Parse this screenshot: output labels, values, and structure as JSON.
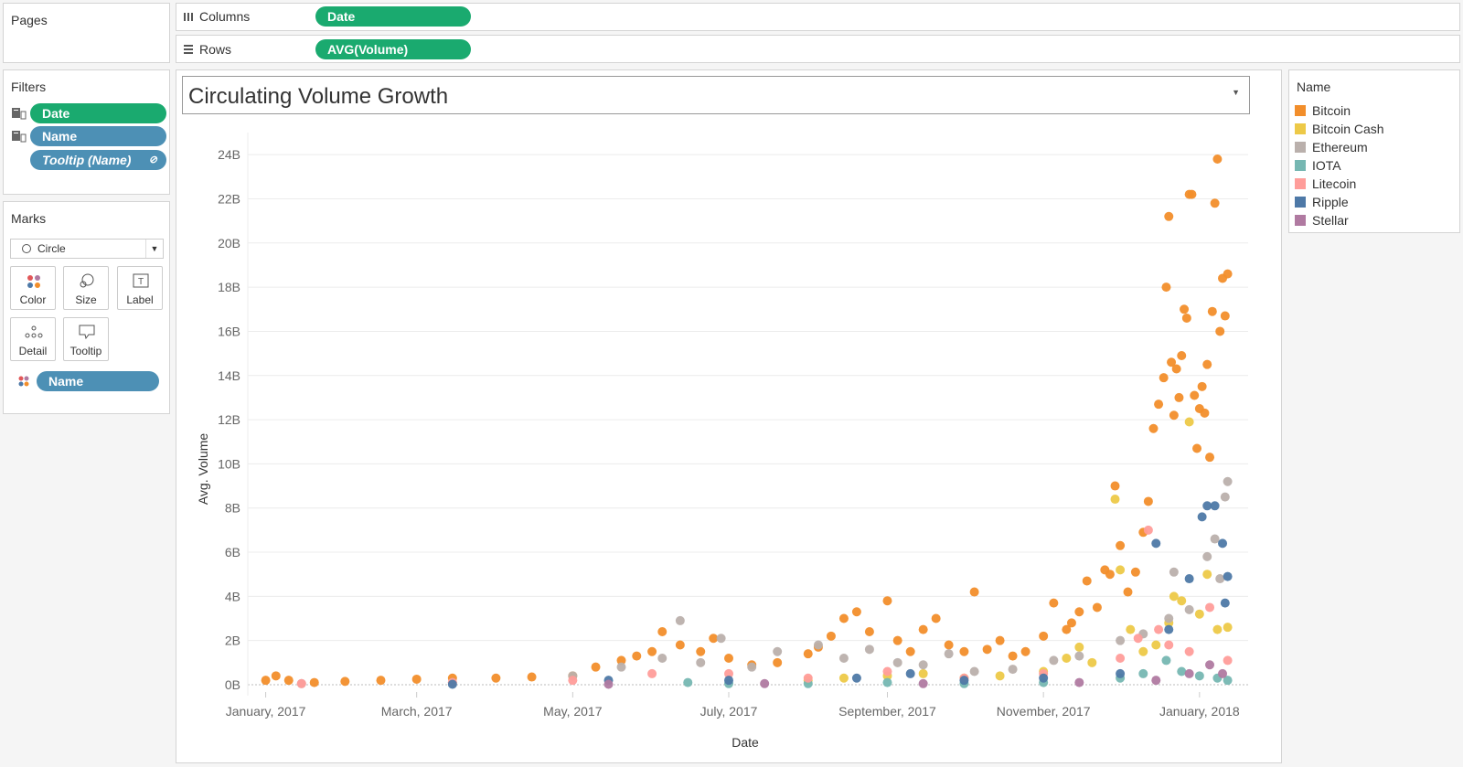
{
  "pages": {
    "title": "Pages"
  },
  "columns_shelf": {
    "label": "Columns",
    "pill": "Date"
  },
  "rows_shelf": {
    "label": "Rows",
    "pill": "AVG(Volume)"
  },
  "filters": {
    "title": "Filters",
    "pills": [
      "Date",
      "Name",
      "Tooltip (Name)"
    ]
  },
  "marks": {
    "title": "Marks",
    "type_select": "Circle",
    "buttons": [
      "Color",
      "Size",
      "Label",
      "Detail",
      "Tooltip"
    ],
    "color_pill": "Name"
  },
  "legend": {
    "title": "Name",
    "items": [
      {
        "name": "Bitcoin",
        "color": "#f28e2b"
      },
      {
        "name": "Bitcoin Cash",
        "color": "#edc948"
      },
      {
        "name": "Ethereum",
        "color": "#bab0ac"
      },
      {
        "name": "IOTA",
        "color": "#76b7b2"
      },
      {
        "name": "Litecoin",
        "color": "#ff9d9a"
      },
      {
        "name": "Ripple",
        "color": "#4e79a7"
      },
      {
        "name": "Stellar",
        "color": "#b07aa1"
      }
    ]
  },
  "chart_data": {
    "type": "scatter",
    "title": "Circulating Volume Growth",
    "xlabel": "Date",
    "ylabel": "Avg. Volume",
    "xlim": [
      "2016-12-25",
      "2018-01-20"
    ],
    "ylim": [
      0,
      25
    ],
    "y_unit": "billions",
    "x_ticks": [
      {
        "date": "2017-01-01",
        "label": "January, 2017"
      },
      {
        "date": "2017-03-01",
        "label": "March, 2017"
      },
      {
        "date": "2017-05-01",
        "label": "May, 2017"
      },
      {
        "date": "2017-07-01",
        "label": "July, 2017"
      },
      {
        "date": "2017-09-01",
        "label": "September, 2017"
      },
      {
        "date": "2017-11-01",
        "label": "November, 2017"
      },
      {
        "date": "2018-01-01",
        "label": "January, 2018"
      }
    ],
    "y_ticks": [
      {
        "value": 0,
        "label": "0B"
      },
      {
        "value": 2,
        "label": "2B"
      },
      {
        "value": 4,
        "label": "4B"
      },
      {
        "value": 6,
        "label": "6B"
      },
      {
        "value": 8,
        "label": "8B"
      },
      {
        "value": 10,
        "label": "10B"
      },
      {
        "value": 12,
        "label": "12B"
      },
      {
        "value": 14,
        "label": "14B"
      },
      {
        "value": 16,
        "label": "16B"
      },
      {
        "value": 18,
        "label": "18B"
      },
      {
        "value": 20,
        "label": "20B"
      },
      {
        "value": 22,
        "label": "22B"
      },
      {
        "value": 24,
        "label": "24B"
      }
    ],
    "grid": true,
    "series": [
      {
        "name": "Bitcoin",
        "color": "#f28e2b",
        "points": [
          [
            "2017-01-01",
            0.2
          ],
          [
            "2017-01-05",
            0.4
          ],
          [
            "2017-01-10",
            0.2
          ],
          [
            "2017-01-20",
            0.1
          ],
          [
            "2017-02-01",
            0.15
          ],
          [
            "2017-02-15",
            0.2
          ],
          [
            "2017-03-01",
            0.25
          ],
          [
            "2017-03-15",
            0.3
          ],
          [
            "2017-04-01",
            0.3
          ],
          [
            "2017-04-15",
            0.35
          ],
          [
            "2017-05-01",
            0.4
          ],
          [
            "2017-05-10",
            0.8
          ],
          [
            "2017-05-20",
            1.1
          ],
          [
            "2017-05-26",
            1.3
          ],
          [
            "2017-06-01",
            1.5
          ],
          [
            "2017-06-05",
            2.4
          ],
          [
            "2017-06-12",
            1.8
          ],
          [
            "2017-06-20",
            1.5
          ],
          [
            "2017-06-25",
            2.1
          ],
          [
            "2017-07-01",
            1.2
          ],
          [
            "2017-07-10",
            0.9
          ],
          [
            "2017-07-20",
            1.0
          ],
          [
            "2017-08-01",
            1.4
          ],
          [
            "2017-08-05",
            1.7
          ],
          [
            "2017-08-10",
            2.2
          ],
          [
            "2017-08-15",
            3.0
          ],
          [
            "2017-08-20",
            3.3
          ],
          [
            "2017-08-25",
            2.4
          ],
          [
            "2017-09-01",
            3.8
          ],
          [
            "2017-09-05",
            2.0
          ],
          [
            "2017-09-10",
            1.5
          ],
          [
            "2017-09-15",
            2.5
          ],
          [
            "2017-09-20",
            3.0
          ],
          [
            "2017-09-25",
            1.8
          ],
          [
            "2017-10-01",
            1.5
          ],
          [
            "2017-10-05",
            4.2
          ],
          [
            "2017-10-10",
            1.6
          ],
          [
            "2017-10-15",
            2.0
          ],
          [
            "2017-10-20",
            1.3
          ],
          [
            "2017-10-25",
            1.5
          ],
          [
            "2017-11-01",
            2.2
          ],
          [
            "2017-11-05",
            3.7
          ],
          [
            "2017-11-10",
            2.5
          ],
          [
            "2017-11-12",
            2.8
          ],
          [
            "2017-11-15",
            3.3
          ],
          [
            "2017-11-18",
            4.7
          ],
          [
            "2017-11-22",
            3.5
          ],
          [
            "2017-11-25",
            5.2
          ],
          [
            "2017-11-27",
            5.0
          ],
          [
            "2017-11-29",
            9.0
          ],
          [
            "2017-12-01",
            6.3
          ],
          [
            "2017-12-04",
            4.2
          ],
          [
            "2017-12-07",
            5.1
          ],
          [
            "2017-12-10",
            6.9
          ],
          [
            "2017-12-12",
            8.3
          ],
          [
            "2017-12-14",
            11.6
          ],
          [
            "2017-12-16",
            12.7
          ],
          [
            "2017-12-18",
            13.9
          ],
          [
            "2017-12-19",
            18.0
          ],
          [
            "2017-12-20",
            21.2
          ],
          [
            "2017-12-21",
            14.6
          ],
          [
            "2017-12-22",
            12.2
          ],
          [
            "2017-12-23",
            14.3
          ],
          [
            "2017-12-24",
            13.0
          ],
          [
            "2017-12-25",
            14.9
          ],
          [
            "2017-12-26",
            17.0
          ],
          [
            "2017-12-27",
            16.6
          ],
          [
            "2017-12-28",
            22.2
          ],
          [
            "2017-12-29",
            22.2
          ],
          [
            "2017-12-30",
            13.1
          ],
          [
            "2017-12-31",
            10.7
          ],
          [
            "2018-01-01",
            12.5
          ],
          [
            "2018-01-02",
            13.5
          ],
          [
            "2018-01-03",
            12.3
          ],
          [
            "2018-01-04",
            14.5
          ],
          [
            "2018-01-05",
            10.3
          ],
          [
            "2018-01-06",
            16.9
          ],
          [
            "2018-01-07",
            21.8
          ],
          [
            "2018-01-08",
            23.8
          ],
          [
            "2018-01-09",
            16.0
          ],
          [
            "2018-01-10",
            18.4
          ],
          [
            "2018-01-11",
            16.7
          ],
          [
            "2018-01-12",
            18.6
          ]
        ]
      },
      {
        "name": "Bitcoin Cash",
        "color": "#edc948",
        "points": [
          [
            "2017-08-01",
            0.2
          ],
          [
            "2017-08-15",
            0.3
          ],
          [
            "2017-09-01",
            0.4
          ],
          [
            "2017-09-15",
            0.5
          ],
          [
            "2017-10-01",
            0.3
          ],
          [
            "2017-10-15",
            0.4
          ],
          [
            "2017-11-01",
            0.6
          ],
          [
            "2017-11-10",
            1.2
          ],
          [
            "2017-11-15",
            1.7
          ],
          [
            "2017-11-20",
            1.0
          ],
          [
            "2017-11-29",
            8.4
          ],
          [
            "2017-12-01",
            5.2
          ],
          [
            "2017-12-05",
            2.5
          ],
          [
            "2017-12-10",
            1.5
          ],
          [
            "2017-12-15",
            1.8
          ],
          [
            "2017-12-20",
            2.8
          ],
          [
            "2017-12-22",
            4.0
          ],
          [
            "2017-12-25",
            3.8
          ],
          [
            "2017-12-28",
            11.9
          ],
          [
            "2018-01-01",
            3.2
          ],
          [
            "2018-01-04",
            5.0
          ],
          [
            "2018-01-08",
            2.5
          ],
          [
            "2018-01-12",
            2.6
          ]
        ]
      },
      {
        "name": "Ethereum",
        "color": "#bab0ac",
        "points": [
          [
            "2017-01-15",
            0.05
          ],
          [
            "2017-03-15",
            0.1
          ],
          [
            "2017-05-01",
            0.4
          ],
          [
            "2017-05-20",
            0.8
          ],
          [
            "2017-06-05",
            1.2
          ],
          [
            "2017-06-12",
            2.9
          ],
          [
            "2017-06-20",
            1.0
          ],
          [
            "2017-06-28",
            2.1
          ],
          [
            "2017-07-10",
            0.8
          ],
          [
            "2017-07-20",
            1.5
          ],
          [
            "2017-08-05",
            1.8
          ],
          [
            "2017-08-15",
            1.2
          ],
          [
            "2017-08-25",
            1.6
          ],
          [
            "2017-09-05",
            1.0
          ],
          [
            "2017-09-15",
            0.9
          ],
          [
            "2017-09-25",
            1.4
          ],
          [
            "2017-10-05",
            0.6
          ],
          [
            "2017-10-20",
            0.7
          ],
          [
            "2017-11-05",
            1.1
          ],
          [
            "2017-11-15",
            1.3
          ],
          [
            "2017-12-01",
            2.0
          ],
          [
            "2017-12-10",
            2.3
          ],
          [
            "2017-12-20",
            3.0
          ],
          [
            "2017-12-22",
            5.1
          ],
          [
            "2017-12-28",
            3.4
          ],
          [
            "2018-01-04",
            5.8
          ],
          [
            "2018-01-07",
            6.6
          ],
          [
            "2018-01-09",
            4.8
          ],
          [
            "2018-01-11",
            8.5
          ],
          [
            "2018-01-12",
            9.2
          ]
        ]
      },
      {
        "name": "IOTA",
        "color": "#76b7b2",
        "points": [
          [
            "2017-06-15",
            0.1
          ],
          [
            "2017-07-01",
            0.05
          ],
          [
            "2017-08-01",
            0.05
          ],
          [
            "2017-09-01",
            0.1
          ],
          [
            "2017-10-01",
            0.05
          ],
          [
            "2017-11-01",
            0.1
          ],
          [
            "2017-12-01",
            0.3
          ],
          [
            "2017-12-10",
            0.5
          ],
          [
            "2017-12-19",
            1.1
          ],
          [
            "2017-12-25",
            0.6
          ],
          [
            "2018-01-01",
            0.4
          ],
          [
            "2018-01-08",
            0.3
          ],
          [
            "2018-01-12",
            0.2
          ]
        ]
      },
      {
        "name": "Litecoin",
        "color": "#ff9d9a",
        "points": [
          [
            "2017-01-15",
            0.05
          ],
          [
            "2017-03-15",
            0.1
          ],
          [
            "2017-05-01",
            0.2
          ],
          [
            "2017-06-01",
            0.5
          ],
          [
            "2017-07-01",
            0.5
          ],
          [
            "2017-08-01",
            0.3
          ],
          [
            "2017-09-01",
            0.6
          ],
          [
            "2017-10-01",
            0.3
          ],
          [
            "2017-11-01",
            0.5
          ],
          [
            "2017-12-01",
            1.2
          ],
          [
            "2017-12-08",
            2.1
          ],
          [
            "2017-12-12",
            7.0
          ],
          [
            "2017-12-16",
            2.5
          ],
          [
            "2017-12-20",
            1.8
          ],
          [
            "2017-12-28",
            1.5
          ],
          [
            "2018-01-05",
            3.5
          ],
          [
            "2018-01-12",
            1.1
          ]
        ]
      },
      {
        "name": "Ripple",
        "color": "#4e79a7",
        "points": [
          [
            "2017-03-15",
            0.02
          ],
          [
            "2017-05-15",
            0.2
          ],
          [
            "2017-07-01",
            0.2
          ],
          [
            "2017-08-20",
            0.3
          ],
          [
            "2017-09-10",
            0.5
          ],
          [
            "2017-10-01",
            0.2
          ],
          [
            "2017-11-01",
            0.3
          ],
          [
            "2017-12-01",
            0.5
          ],
          [
            "2017-12-15",
            6.4
          ],
          [
            "2017-12-20",
            2.5
          ],
          [
            "2017-12-28",
            4.8
          ],
          [
            "2018-01-02",
            7.6
          ],
          [
            "2018-01-04",
            8.1
          ],
          [
            "2018-01-07",
            8.1
          ],
          [
            "2018-01-10",
            6.4
          ],
          [
            "2018-01-11",
            3.7
          ],
          [
            "2018-01-12",
            4.9
          ]
        ]
      },
      {
        "name": "Stellar",
        "color": "#b07aa1",
        "points": [
          [
            "2017-05-15",
            0.02
          ],
          [
            "2017-07-15",
            0.05
          ],
          [
            "2017-09-15",
            0.05
          ],
          [
            "2017-11-15",
            0.1
          ],
          [
            "2017-12-15",
            0.2
          ],
          [
            "2017-12-28",
            0.5
          ],
          [
            "2018-01-05",
            0.9
          ],
          [
            "2018-01-10",
            0.5
          ]
        ]
      }
    ]
  }
}
